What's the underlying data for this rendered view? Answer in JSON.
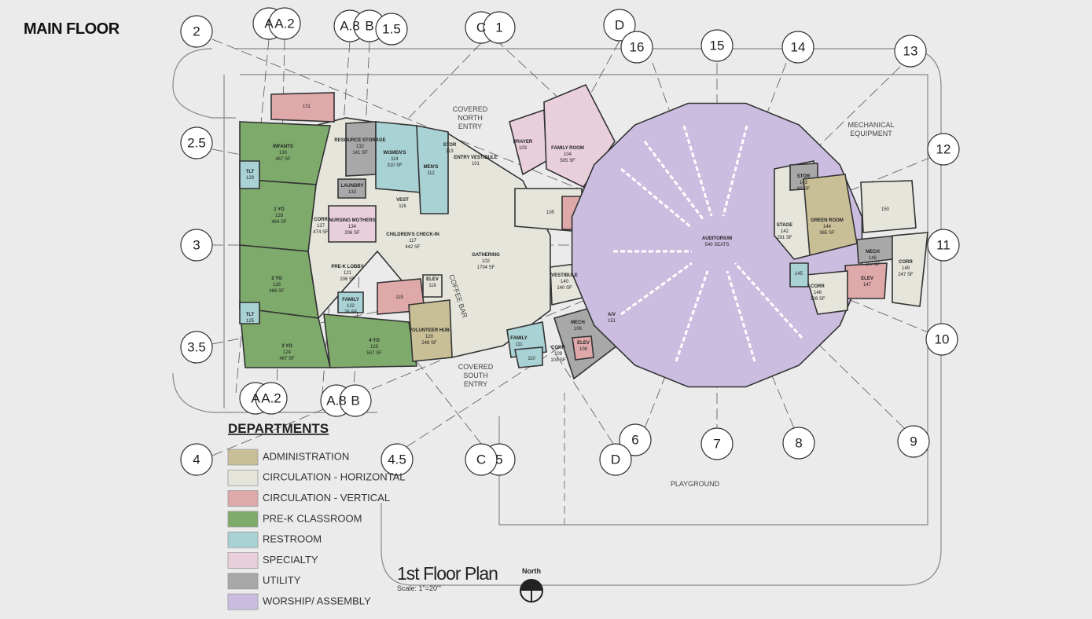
{
  "header": {
    "title": "MAIN FLOOR"
  },
  "grid_bubbles": [
    "2",
    "A",
    "A.2",
    "A.8",
    "B",
    "1.5",
    "C",
    "1",
    "D",
    "16",
    "15",
    "14",
    "13",
    "12",
    "11",
    "10",
    "9",
    "8",
    "7",
    "6",
    "D",
    "5",
    "C",
    "4.5",
    "4",
    "3.5",
    "3",
    "2.5",
    "A",
    "A.2",
    "A.8",
    "B"
  ],
  "rooms": [
    {
      "number": "131"
    },
    {
      "name": "INFANTS",
      "number": "130",
      "area": "467 SF"
    },
    {
      "name": "RESOURCE STORAGE",
      "number": "132",
      "area": "141 SF"
    },
    {
      "name": "WOMEN'S",
      "number": "114",
      "area": "310 SF"
    },
    {
      "name": "MEN'S",
      "number": "112"
    },
    {
      "name": "STOR",
      "number": "113"
    },
    {
      "name": "ENTRY VESTIBULE",
      "number": "101"
    },
    {
      "name": "PRAYER",
      "number": "103"
    },
    {
      "name": "FAMILY ROOM",
      "number": "104",
      "area": "505 SF"
    },
    {
      "name": "TLT",
      "number": "129"
    },
    {
      "name": "LAUNDRY",
      "number": "133"
    },
    {
      "name": "1 YO",
      "number": "128",
      "area": "464 SF"
    },
    {
      "name": "CORR",
      "number": "127",
      "area": "474 SF"
    },
    {
      "name": "NURSING MOTHERS",
      "number": "134",
      "area": "206 SF"
    },
    {
      "name": "VEST",
      "number": "116"
    },
    {
      "name": "CHILDREN'S CHECK-IN",
      "number": "117",
      "area": "442 SF"
    },
    {
      "name": "GATHERING",
      "number": "102",
      "area": "1704 SF"
    },
    {
      "name": "PRE-K LOBBY",
      "number": "121",
      "area": "206 SF"
    },
    {
      "name": "2 YO",
      "number": "126",
      "area": "466 SF"
    },
    {
      "name": "ELEV",
      "number": "118"
    },
    {
      "number": "119"
    },
    {
      "name": "FAMILY",
      "number": "122",
      "area": "75 SF"
    },
    {
      "name": "TLT",
      "number": "125"
    },
    {
      "name": "VOLUNTEER HUB",
      "number": "120",
      "area": "248 SF"
    },
    {
      "name": "3 YO",
      "number": "124",
      "area": "467 SF"
    },
    {
      "name": "4 YO",
      "number": "123",
      "area": "507 SF"
    },
    {
      "number": "105"
    },
    {
      "name": "VESTIBULE",
      "number": "140",
      "area": "140 SF"
    },
    {
      "name": "A/V",
      "number": "151"
    },
    {
      "name": "MECH",
      "number": "106"
    },
    {
      "name": "ELEV",
      "number": "108"
    },
    {
      "name": "CORR",
      "number": "109",
      "area": "104 SF"
    },
    {
      "name": "FAMILY",
      "number": "111"
    },
    {
      "number": "110"
    },
    {
      "name": "AUDITORIUM",
      "area": "540 SEATS"
    },
    {
      "name": "STAGE",
      "number": "142",
      "area": "291 SF"
    },
    {
      "name": "STOR",
      "number": "143",
      "area": "60 SF"
    },
    {
      "name": "GREEN ROOM",
      "number": "144",
      "area": "365 SF"
    },
    {
      "number": "150"
    },
    {
      "name": "MECH",
      "number": "148",
      "area": "107 SF"
    },
    {
      "name": "CORR",
      "number": "149",
      "area": "247 SF"
    },
    {
      "name": "ELEV",
      "number": "147"
    },
    {
      "name": "CORR",
      "number": "146",
      "area": "126 SF"
    },
    {
      "number": "145"
    }
  ],
  "labels": [
    {
      "lines": [
        "COVERED",
        "NORTH",
        "ENTRY"
      ]
    },
    {
      "lines": [
        "COVERED",
        "SOUTH",
        "ENTRY"
      ]
    },
    {
      "lines": [
        "MECHANICAL",
        "EQUIPMENT"
      ]
    },
    {
      "lines": [
        "COFFEE BAR"
      ]
    },
    {
      "lines": [
        "PLAYGROUND"
      ]
    }
  ],
  "legend": {
    "title": "DEPARTMENTS",
    "items": [
      {
        "name": "ADMINISTRATION",
        "color": "#c9bf97"
      },
      {
        "name": "CIRCULATION - HORIZONTAL",
        "color": "#e6e5dc"
      },
      {
        "name": "CIRCULATION - VERTICAL",
        "color": "#dfa9aa"
      },
      {
        "name": "PRE-K CLASSROOM",
        "color": "#7eab6c"
      },
      {
        "name": "RESTROOM",
        "color": "#a9d2d4"
      },
      {
        "name": "SPECIALTY",
        "color": "#e9cfdc"
      },
      {
        "name": "UTILITY",
        "color": "#a8a8a8"
      },
      {
        "name": "WORSHIP/ ASSEMBLY",
        "color": "#cbbde0"
      }
    ]
  },
  "plan_title": {
    "title": "1st Floor Plan",
    "scale": "Scale: 1\"=20'\"",
    "north": "North"
  }
}
